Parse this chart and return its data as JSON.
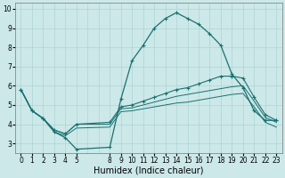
{
  "bg_color": "#cce8e8",
  "grid_color": "#aed4d4",
  "line_color": "#1a7070",
  "series1_x": [
    0,
    1,
    2,
    3,
    4,
    5,
    8,
    9,
    10,
    11,
    12,
    13,
    14,
    15,
    16,
    17,
    18,
    19,
    20,
    21,
    22,
    23
  ],
  "series1_y": [
    5.8,
    4.7,
    4.3,
    3.6,
    3.3,
    2.7,
    2.8,
    5.3,
    7.3,
    8.1,
    9.0,
    9.5,
    9.8,
    9.5,
    9.2,
    8.7,
    8.1,
    6.6,
    5.9,
    4.7,
    4.2,
    4.2
  ],
  "series2_x": [
    0,
    1,
    2,
    3,
    4,
    5,
    8,
    9,
    10,
    11,
    12,
    13,
    14,
    15,
    16,
    17,
    18,
    19,
    20,
    21,
    22,
    23
  ],
  "series2_y": [
    5.8,
    4.7,
    4.3,
    3.7,
    3.5,
    4.0,
    4.1,
    4.9,
    5.0,
    5.2,
    5.4,
    5.6,
    5.8,
    5.9,
    6.1,
    6.3,
    6.5,
    6.5,
    6.4,
    5.4,
    4.5,
    4.2
  ],
  "series3_x": [
    0,
    1,
    2,
    3,
    4,
    5,
    8,
    9,
    10,
    11,
    12,
    13,
    14,
    15,
    16,
    17,
    18,
    19,
    20,
    21,
    22,
    23
  ],
  "series3_y": [
    5.8,
    4.7,
    4.3,
    3.7,
    3.5,
    4.0,
    4.0,
    4.8,
    4.85,
    5.0,
    5.15,
    5.3,
    5.45,
    5.55,
    5.65,
    5.75,
    5.85,
    5.95,
    6.0,
    5.2,
    4.35,
    4.1
  ],
  "series4_x": [
    0,
    1,
    2,
    3,
    4,
    5,
    8,
    9,
    10,
    11,
    12,
    13,
    14,
    15,
    16,
    17,
    18,
    19,
    20,
    21,
    22,
    23
  ],
  "series4_y": [
    5.8,
    4.7,
    4.3,
    3.6,
    3.4,
    3.8,
    3.85,
    4.65,
    4.7,
    4.8,
    4.9,
    5.0,
    5.1,
    5.15,
    5.25,
    5.35,
    5.45,
    5.55,
    5.6,
    4.9,
    4.1,
    3.85
  ],
  "xlabel": "Humidex (Indice chaleur)",
  "xlim": [
    -0.5,
    23.5
  ],
  "ylim": [
    2.5,
    10.3
  ],
  "xtick_vals": [
    0,
    1,
    2,
    3,
    4,
    5,
    8,
    9,
    10,
    11,
    12,
    13,
    14,
    15,
    16,
    17,
    18,
    19,
    20,
    21,
    22,
    23
  ],
  "ytick_vals": [
    3,
    4,
    5,
    6,
    7,
    8,
    9,
    10
  ],
  "tick_fontsize": 5.5,
  "xlabel_fontsize": 7
}
